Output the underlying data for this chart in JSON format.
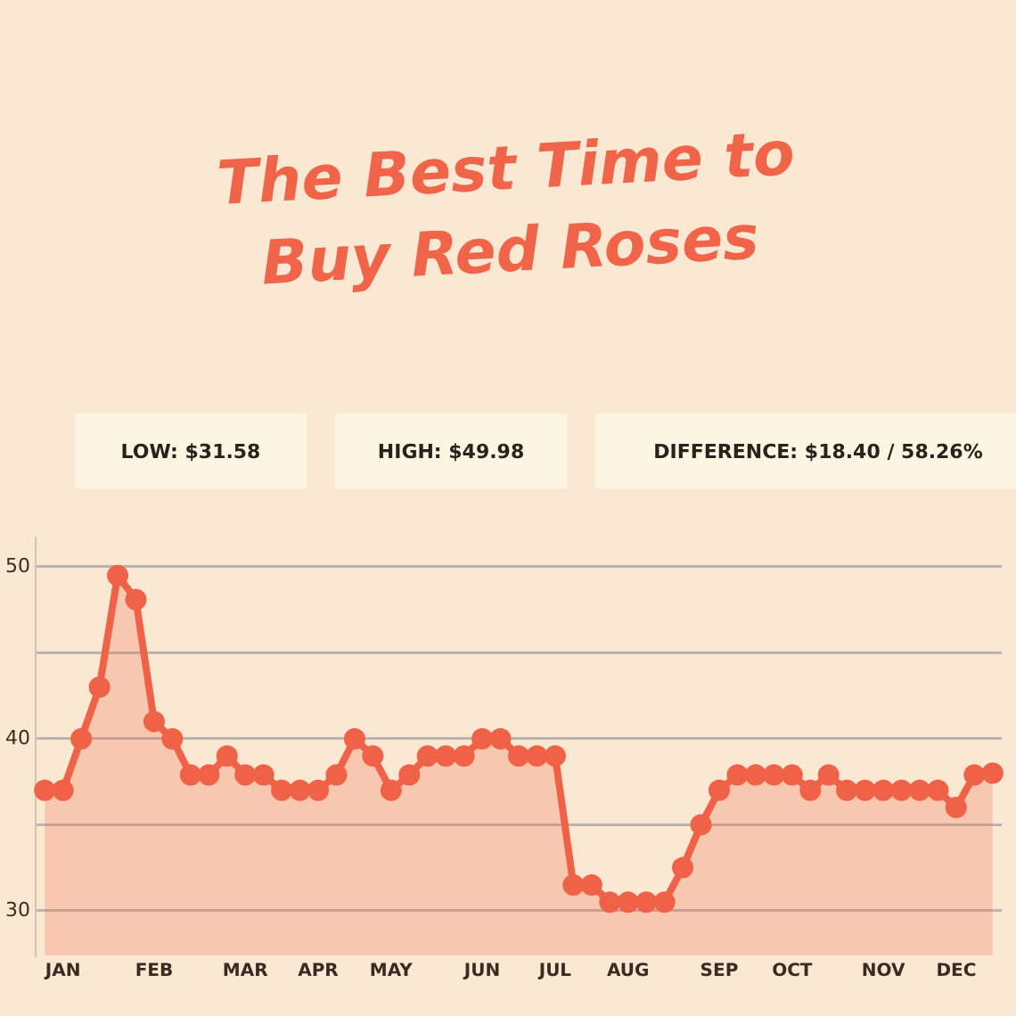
{
  "chart_data": {
    "type": "area",
    "title": "The Best Time to Buy Red Roses",
    "annotations": [
      "LOW:  $31.58",
      "HIGH:  $49.98",
      "DIFFERENCE:  $18.40 / 58.26%"
    ],
    "categories": [
      null,
      "JAN",
      null,
      null,
      null,
      null,
      "FEB",
      null,
      null,
      null,
      null,
      "MAR",
      null,
      null,
      null,
      "APR",
      null,
      null,
      null,
      "MAY",
      null,
      null,
      null,
      null,
      "JUN",
      null,
      null,
      null,
      "JUL",
      null,
      null,
      null,
      "AUG",
      null,
      null,
      null,
      null,
      "SEP",
      null,
      null,
      null,
      "OCT",
      null,
      null,
      null,
      null,
      "NOV",
      null,
      null,
      null,
      "DEC",
      null,
      null
    ],
    "series": [
      {
        "color": "#ef6248",
        "values": [
          37,
          37,
          40,
          43,
          49.5,
          48.1,
          41,
          40,
          37.9,
          37.9,
          39,
          37.9,
          37.9,
          37,
          37,
          37,
          37.9,
          40,
          39,
          37,
          37.9,
          39,
          39,
          39,
          40,
          40,
          39,
          39,
          39,
          31.5,
          31.5,
          30.5,
          30.5,
          30.5,
          30.5,
          32.5,
          35,
          37,
          37.9,
          37.9,
          37.9,
          37.9,
          37,
          37.9,
          37,
          37,
          37,
          37,
          37,
          37,
          36,
          37.9,
          38
        ]
      }
    ],
    "ylim": [
      27.4,
      51.7
    ],
    "yticks": [
      30,
      {
        "value": 35,
        "label": null
      },
      40,
      {
        "value": 45,
        "label": null
      },
      50
    ],
    "grid": "y",
    "marker": "circle",
    "line_style": "solid",
    "legend": false
  }
}
